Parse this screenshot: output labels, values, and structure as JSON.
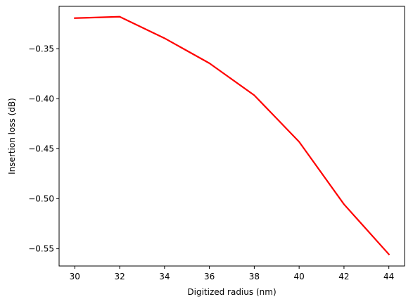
{
  "chart_data": {
    "type": "line",
    "title": "",
    "xlabel": "Digitized radius (nm)",
    "ylabel": "Insertion loss (dB)",
    "xlim": [
      29.3,
      44.7
    ],
    "ylim": [
      -0.5672,
      -0.3076
    ],
    "x_ticks": [
      30,
      32,
      34,
      36,
      38,
      40,
      42,
      44
    ],
    "x_tick_labels": [
      "30",
      "32",
      "34",
      "36",
      "38",
      "40",
      "42",
      "44"
    ],
    "y_ticks": [
      -0.35,
      -0.4,
      -0.45,
      -0.5,
      -0.55
    ],
    "y_tick_labels": [
      "−0.35",
      "−0.40",
      "−0.45",
      "−0.50",
      "−0.55"
    ],
    "grid": false,
    "series": [
      {
        "color": "#ff0000",
        "x": [
          30,
          32,
          34,
          36,
          38,
          40,
          42,
          44
        ],
        "y": [
          -0.3194,
          -0.318,
          -0.3395,
          -0.3645,
          -0.3965,
          -0.443,
          -0.5055,
          -0.5555
        ]
      }
    ]
  }
}
